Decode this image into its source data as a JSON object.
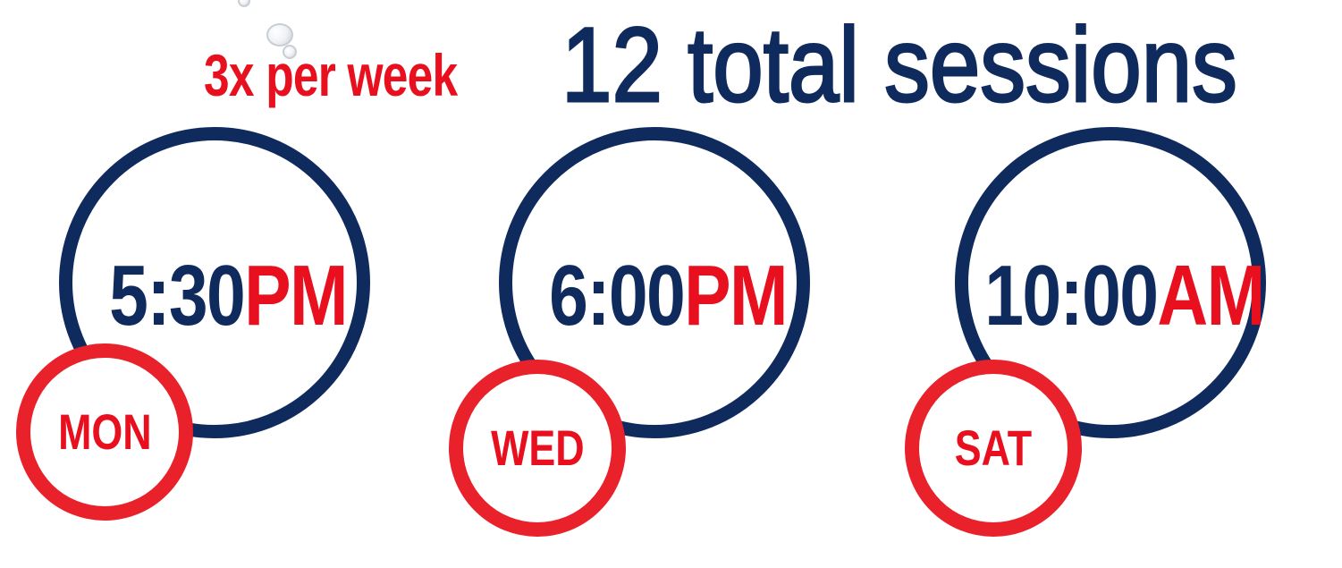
{
  "headline": {
    "frequency": "3x per week",
    "total": "12 total sessions"
  },
  "colors": {
    "navy": "#0f2a5c",
    "red": "#e8101e",
    "ring_red": "#e8212b"
  },
  "sessions": [
    {
      "day": "MON",
      "time": "5:30",
      "meridiem": "PM"
    },
    {
      "day": "WED",
      "time": "6:00",
      "meridiem": "PM"
    },
    {
      "day": "SAT",
      "time": "10:00",
      "meridiem": "AM"
    }
  ]
}
